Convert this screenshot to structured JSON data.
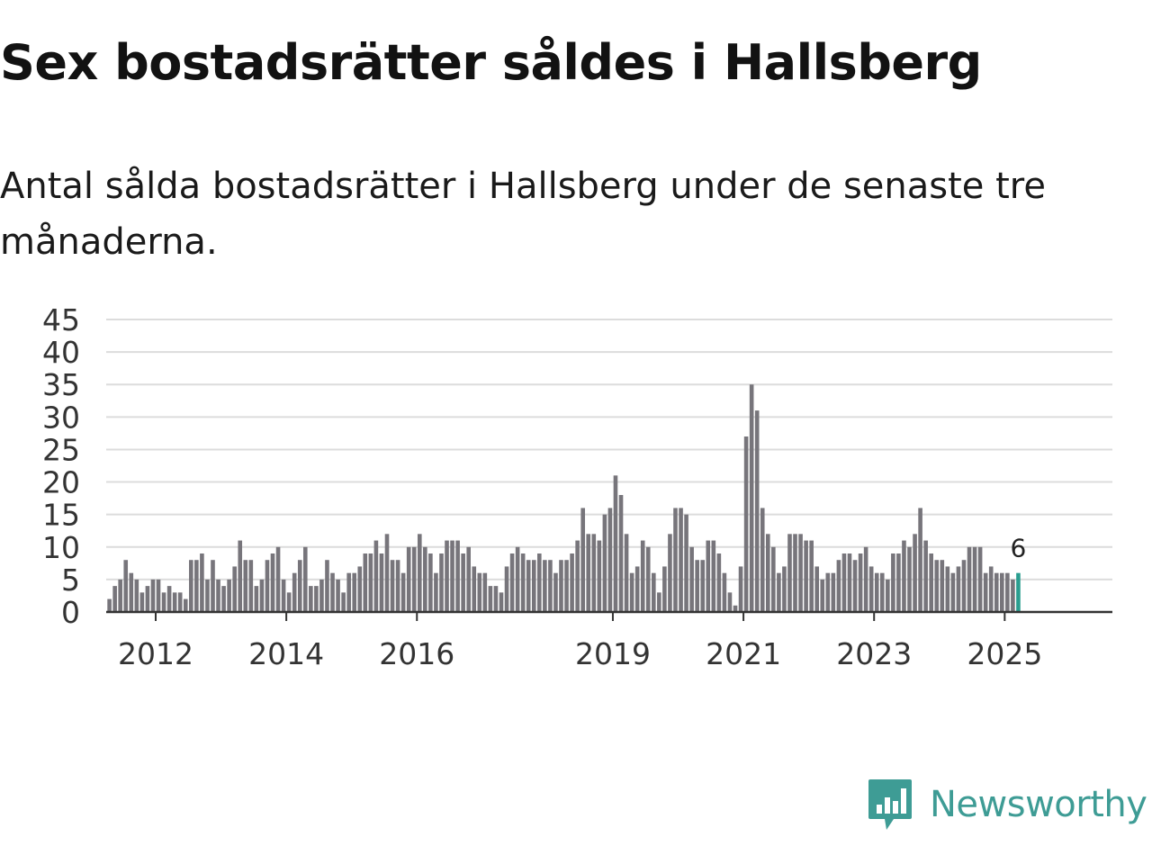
{
  "title": "Sex bostadsrätter såldes i Hallsberg",
  "subtitle": "Antal sålda bostadsrätter i Hallsberg under de senaste tre månaderna.",
  "brand": {
    "name": "Newsworthy",
    "color": "#3e9c95"
  },
  "chart_data": {
    "type": "bar",
    "title": "Sex bostadsrätter såldes i Hallsberg",
    "xlabel": "",
    "ylabel": "",
    "ylim": [
      0,
      45
    ],
    "yticks": [
      "0",
      "5",
      "10",
      "15",
      "20",
      "25",
      "30",
      "35",
      "40",
      "45"
    ],
    "xtick_labels": [
      {
        "label": "2012",
        "index": 0
      },
      {
        "label": "2014",
        "index": 24
      },
      {
        "label": "2016",
        "index": 48
      },
      {
        "label": "2019",
        "index": 84
      },
      {
        "label": "2021",
        "index": 108
      },
      {
        "label": "2023",
        "index": 132
      },
      {
        "label": "2025",
        "index": 156
      }
    ],
    "first_index": -9,
    "bar_color": "#77757b",
    "highlight_color": "#2a9d8f",
    "highlight_label": "6",
    "values": [
      2,
      4,
      5,
      8,
      6,
      5,
      3,
      4,
      5,
      5,
      3,
      4,
      3,
      3,
      2,
      8,
      8,
      9,
      5,
      8,
      5,
      4,
      5,
      7,
      11,
      8,
      8,
      4,
      5,
      8,
      9,
      10,
      5,
      3,
      6,
      8,
      10,
      4,
      4,
      5,
      8,
      6,
      5,
      3,
      6,
      6,
      7,
      9,
      9,
      11,
      9,
      12,
      8,
      8,
      6,
      10,
      10,
      12,
      10,
      9,
      6,
      9,
      11,
      11,
      11,
      9,
      10,
      7,
      6,
      6,
      4,
      4,
      3,
      7,
      9,
      10,
      9,
      8,
      8,
      9,
      8,
      8,
      6,
      8,
      8,
      9,
      11,
      16,
      12,
      12,
      11,
      15,
      16,
      21,
      18,
      12,
      6,
      7,
      11,
      10,
      6,
      3,
      7,
      12,
      16,
      16,
      15,
      10,
      8,
      8,
      11,
      11,
      9,
      6,
      3,
      1,
      7,
      27,
      35,
      31,
      16,
      12,
      10,
      6,
      7,
      12,
      12,
      12,
      11,
      11,
      7,
      5,
      6,
      6,
      8,
      9,
      9,
      8,
      9,
      10,
      7,
      6,
      6,
      5,
      9,
      9,
      11,
      10,
      12,
      16,
      11,
      9,
      8,
      8,
      7,
      6,
      7,
      8,
      10,
      10,
      10,
      6,
      7,
      6,
      6,
      6,
      5,
      6
    ]
  }
}
